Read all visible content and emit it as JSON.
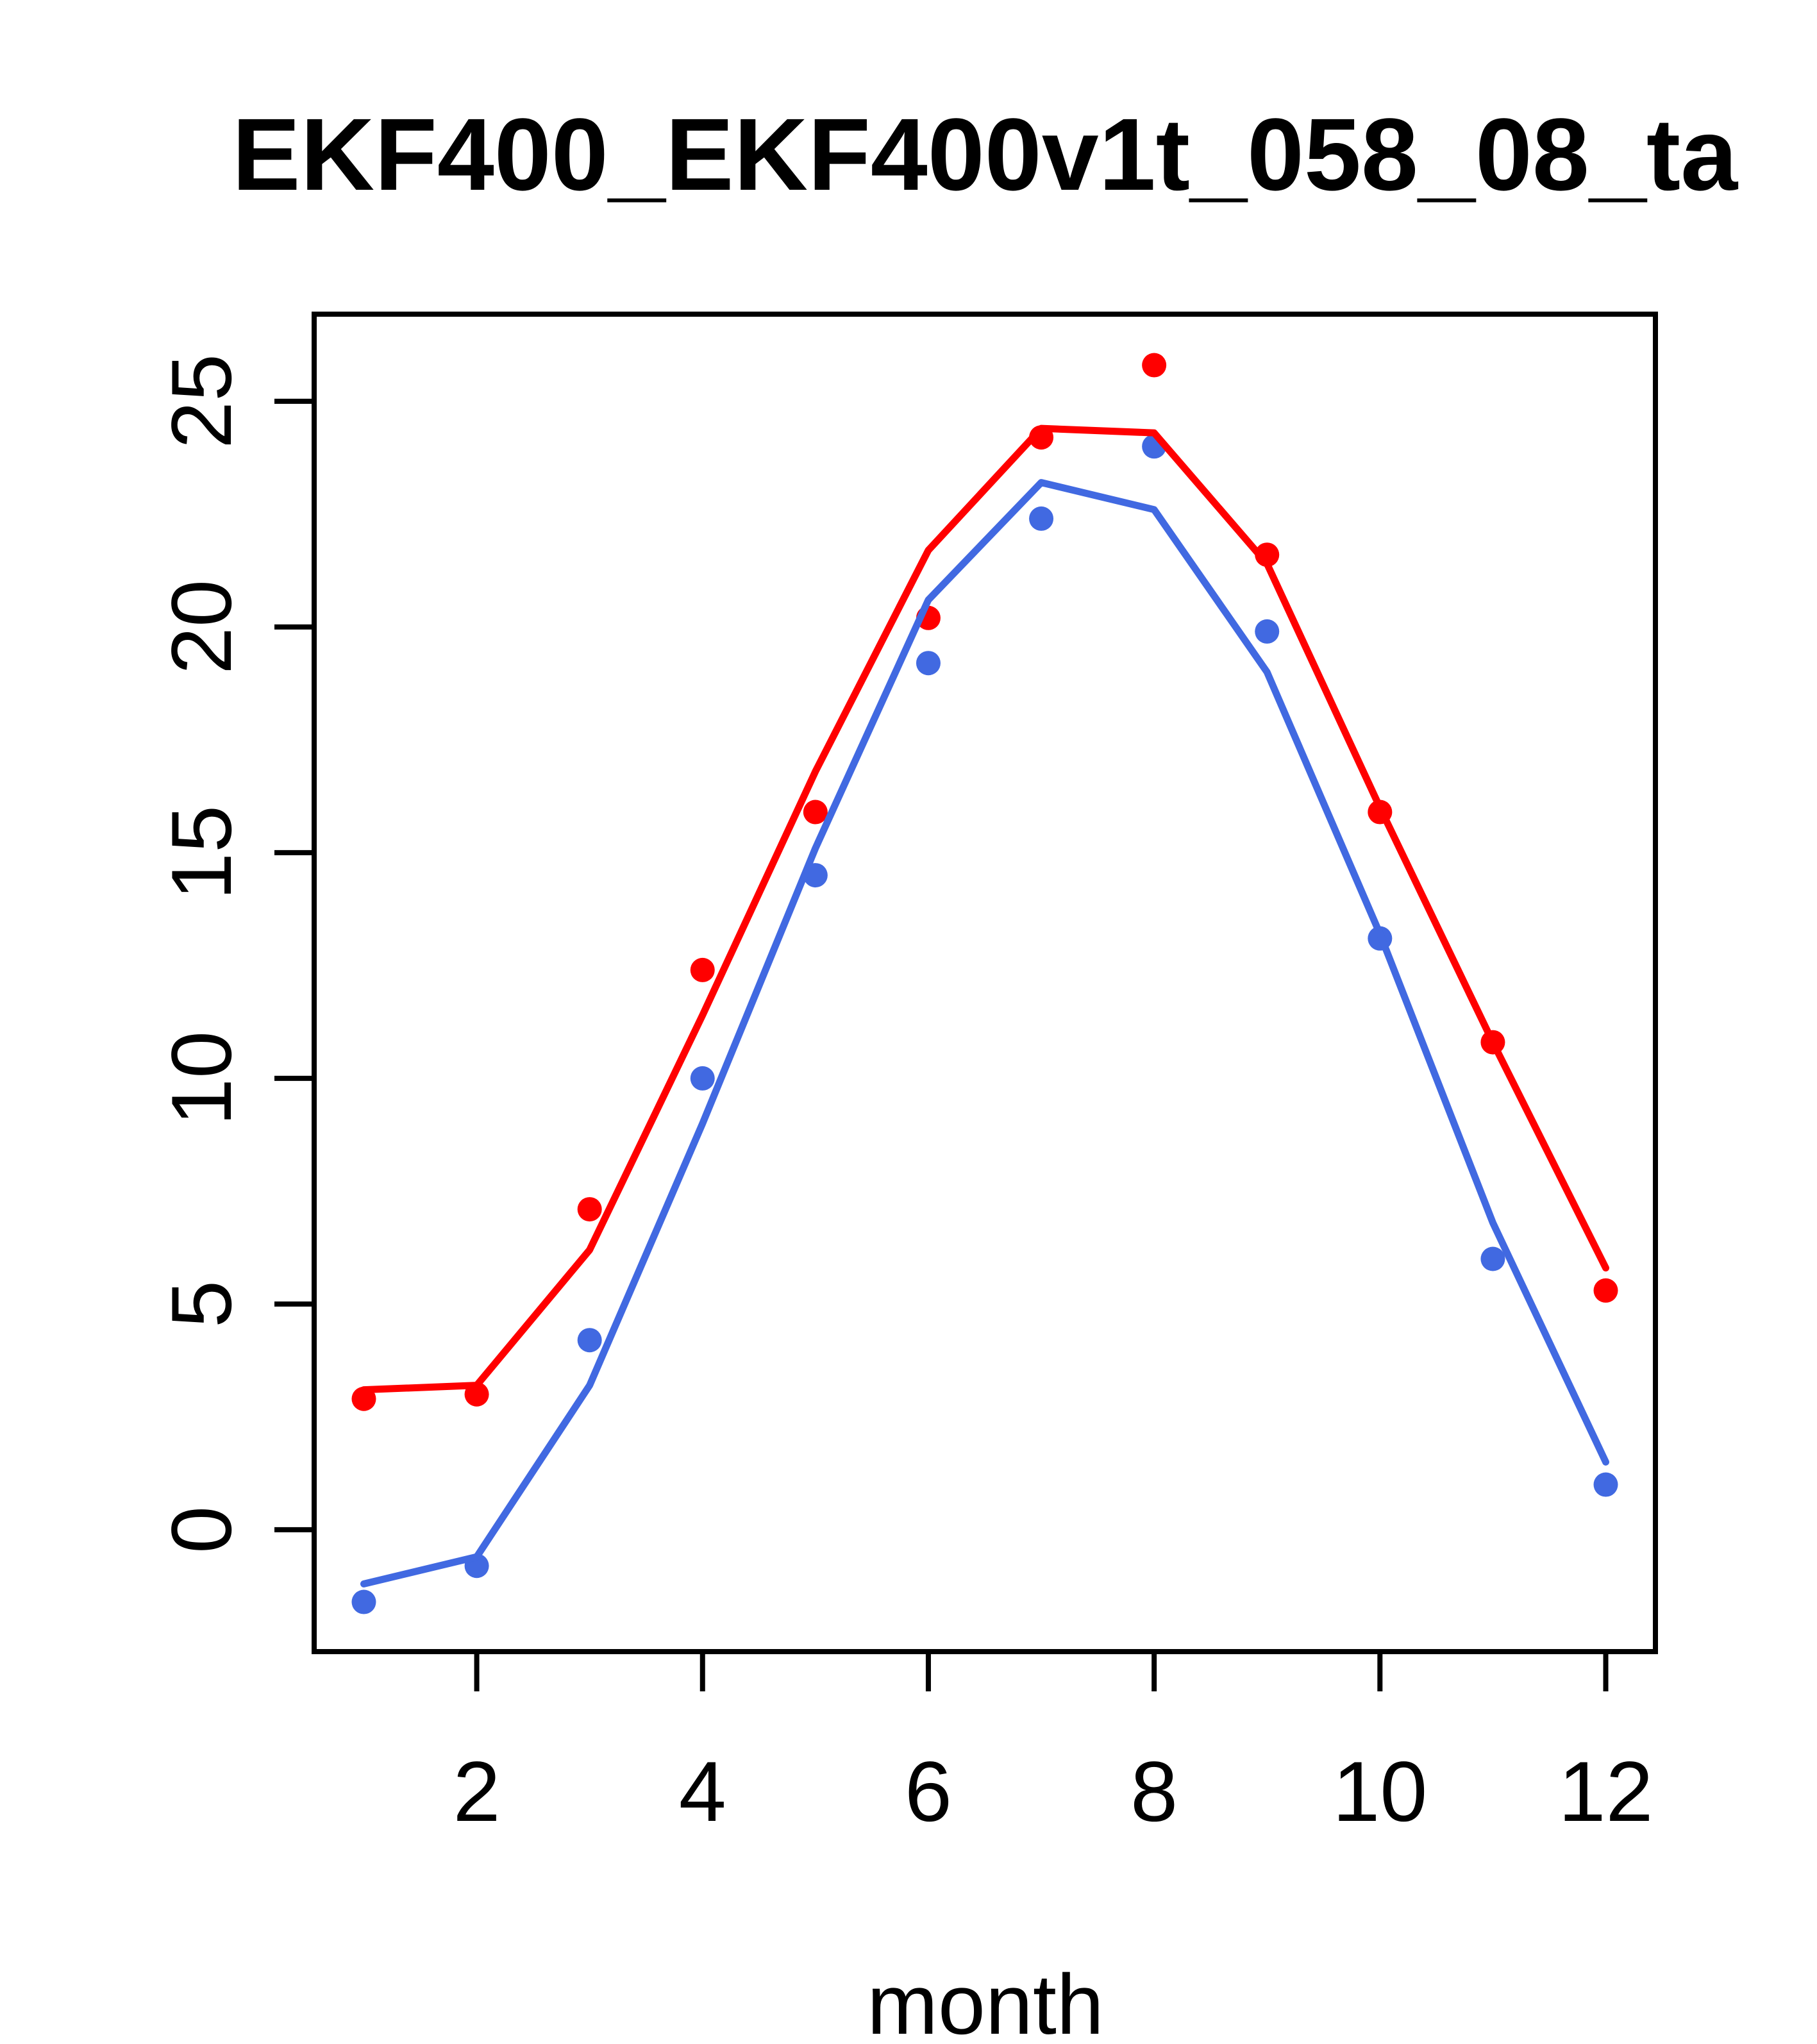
{
  "chart_data": {
    "type": "line",
    "title": "EKF400_EKF400v1t_058_08_ta",
    "xlabel": "month",
    "ylabel": "",
    "x": [
      1,
      2,
      3,
      4,
      5,
      6,
      7,
      8,
      9,
      10,
      11,
      12
    ],
    "x_tick_labels": [
      "2",
      "4",
      "6",
      "8",
      "10",
      "12"
    ],
    "x_ticks": [
      2,
      4,
      6,
      8,
      10,
      12
    ],
    "y_tick_labels": [
      "0",
      "5",
      "10",
      "15",
      "20",
      "25"
    ],
    "y_ticks": [
      0,
      5,
      10,
      15,
      20,
      25
    ],
    "xlim": [
      0.56,
      12.44
    ],
    "ylim": [
      -2.7,
      26.93
    ],
    "grid": false,
    "legend": "none",
    "colors": {
      "red_series": "#FF0000",
      "blue_series": "#4169E1",
      "axis": "#000000"
    },
    "series": [
      {
        "name": "red-points",
        "render": "scatter",
        "color": "#FF0000",
        "values": [
          2.9,
          3.0,
          7.1,
          12.4,
          15.9,
          20.2,
          24.2,
          25.8,
          21.6,
          15.9,
          10.8,
          5.3
        ]
      },
      {
        "name": "blue-points",
        "render": "scatter",
        "color": "#4169E1",
        "values": [
          -1.6,
          -0.8,
          4.2,
          10.0,
          14.5,
          19.2,
          22.4,
          24.0,
          19.9,
          13.1,
          6.0,
          1.0
        ]
      },
      {
        "name": "red-line",
        "render": "line",
        "color": "#FF0000",
        "values": [
          3.1,
          3.2,
          6.2,
          11.4,
          16.8,
          21.7,
          24.4,
          24.3,
          21.4,
          16.0,
          10.8,
          5.8
        ]
      },
      {
        "name": "blue-line",
        "render": "line",
        "color": "#4169E1",
        "values": [
          -1.2,
          -0.6,
          3.2,
          9.0,
          15.1,
          20.6,
          23.2,
          22.6,
          19.0,
          13.2,
          6.8,
          1.5
        ]
      }
    ]
  }
}
